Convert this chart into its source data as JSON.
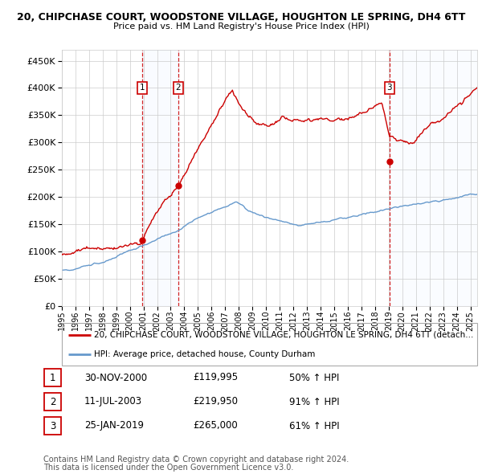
{
  "title": "20, CHIPCHASE COURT, WOODSTONE VILLAGE, HOUGHTON LE SPRING, DH4 6TT",
  "subtitle": "Price paid vs. HM Land Registry's House Price Index (HPI)",
  "ylim": [
    0,
    470000
  ],
  "yticks": [
    0,
    50000,
    100000,
    150000,
    200000,
    250000,
    300000,
    350000,
    400000,
    450000
  ],
  "background_color": "#ffffff",
  "grid_color": "#cccccc",
  "hpi_color": "#6699cc",
  "price_color": "#cc0000",
  "annotation_color": "#cc0000",
  "sale1_price": 119995,
  "sale1_date": "30-NOV-2000",
  "sale1_hpi_text": "50% ↑ HPI",
  "sale1_x": 2000.917,
  "sale2_price": 219950,
  "sale2_date": "11-JUL-2003",
  "sale2_hpi_text": "91% ↑ HPI",
  "sale2_x": 2003.54,
  "sale3_price": 265000,
  "sale3_date": "25-JAN-2019",
  "sale3_hpi_text": "61% ↑ HPI",
  "sale3_x": 2019.07,
  "legend_label1": "20, CHIPCHASE COURT, WOODSTONE VILLAGE, HOUGHTON LE SPRING, DH4 6TT (detach...",
  "legend_label2": "HPI: Average price, detached house, County Durham",
  "footer1": "Contains HM Land Registry data © Crown copyright and database right 2024.",
  "footer2": "This data is licensed under the Open Government Licence v3.0.",
  "xmin": 1995,
  "xmax": 2025.5
}
